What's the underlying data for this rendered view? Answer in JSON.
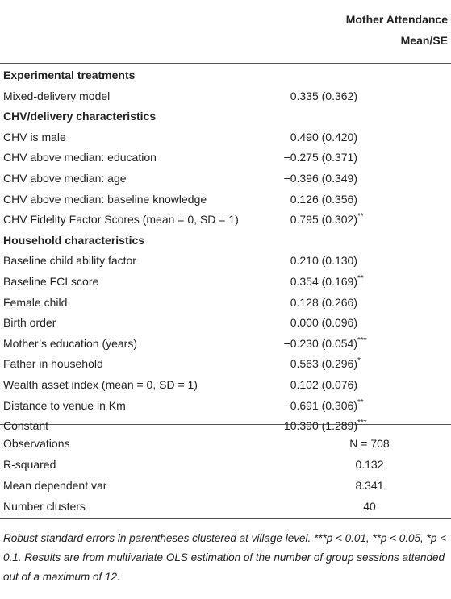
{
  "header": {
    "column_title": [
      "Mother Attendance",
      "Mean/SE"
    ]
  },
  "sections": [
    {
      "title": "Experimental treatments",
      "rows": [
        {
          "label": "Mixed-delivery model",
          "value": "0.335 (0.362)"
        }
      ]
    },
    {
      "title": "CHV/delivery characteristics",
      "rows": [
        {
          "label": "CHV is male",
          "value": "0.490 (0.420)"
        },
        {
          "label": "CHV above median: education",
          "value": "−0.275 (0.371)"
        },
        {
          "label": "CHV above median: age",
          "value": "−0.396 (0.349)"
        },
        {
          "label": "CHV above median: baseline knowledge",
          "value": "0.126 (0.356)"
        },
        {
          "label": "CHV Fidelity Factor Scores (mean = 0, SD = 1)",
          "value": "0.795 (0.302)",
          "stars": "**"
        }
      ]
    },
    {
      "title": "Household characteristics",
      "rows": [
        {
          "label": "Baseline child ability factor",
          "value": "0.210 (0.130)"
        },
        {
          "label": "Baseline FCI score",
          "value": "0.354 (0.169)",
          "stars": "**"
        },
        {
          "label": "Female child",
          "value": "0.128 (0.266)"
        },
        {
          "label": "Birth order",
          "value": "0.000 (0.096)"
        },
        {
          "label": "Mother’s education (years)",
          "value": "−0.230 (0.054)",
          "stars": "***"
        },
        {
          "label": "Father in household",
          "value": "0.563 (0.296)",
          "stars": "*"
        },
        {
          "label": "Wealth asset index (mean = 0, SD = 1)",
          "value": "0.102 (0.076)"
        },
        {
          "label": "Distance to venue in Km",
          "value": "−0.691 (0.306)",
          "stars": "**"
        },
        {
          "label": "Constant",
          "value": "10.390 (1.289)",
          "stars": "***"
        }
      ]
    }
  ],
  "statistics": [
    {
      "label": "Observations",
      "value": "N = 708"
    },
    {
      "label": "R-squared",
      "value": "0.132"
    },
    {
      "label": "Mean dependent var",
      "value": "8.341"
    },
    {
      "label": "Number clusters",
      "value": "40"
    }
  ],
  "footnote": "Robust standard errors in parentheses clustered at village level. ***p < 0.01, **p < 0.05, *p < 0.1. Results are from multivariate OLS estimation of the number of group sessions attended out of a maximum of 12."
}
